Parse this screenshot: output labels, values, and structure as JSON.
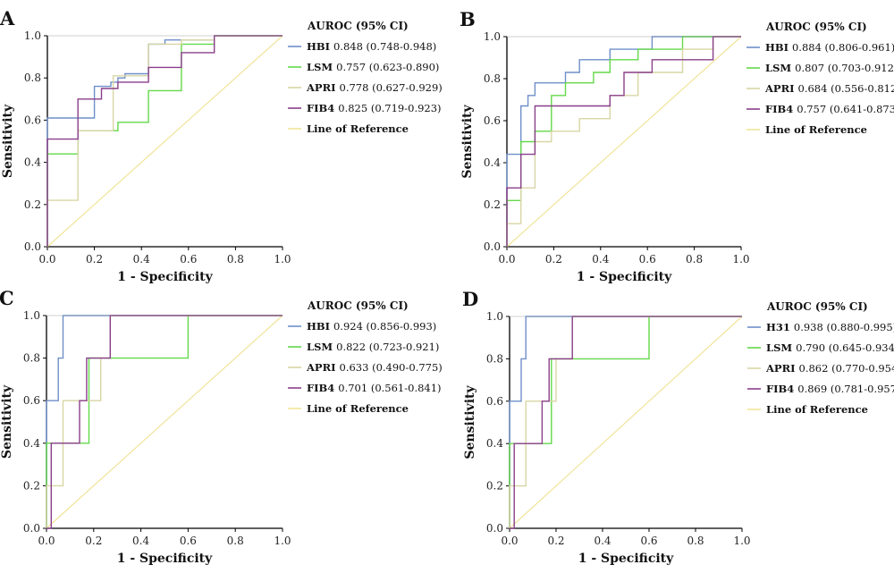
{
  "colors": {
    "HBI": "#6f8fc9",
    "LSM": "#63d94a",
    "APRI": "#d8d6a4",
    "FIB4": "#8a3f8a",
    "Reference": "#f1e49a",
    "axis": "#000000"
  },
  "chart_data": [
    {
      "type": "line",
      "panel": "A",
      "xlabel": "1 - Specificity",
      "ylabel": "Sensitivity",
      "xlim": [
        0,
        1
      ],
      "ylim": [
        0,
        1
      ],
      "ticks": [
        "0.0",
        "0.2",
        "0.4",
        "0.6",
        "0.8",
        "1.0"
      ],
      "legend_title": "AUROC (95% CI)",
      "grid": false,
      "series": [
        {
          "name": "HBI",
          "color_key": "HBI",
          "auroc": "0.848 (0.748-0.948)",
          "x": [
            0,
            0,
            0.2,
            0.2,
            0.27,
            0.27,
            0.3,
            0.3,
            0.33,
            0.33,
            0.43,
            0.43,
            0.5,
            0.5,
            0.71,
            0.71,
            0.79,
            0.79,
            1
          ],
          "y": [
            0,
            0.61,
            0.61,
            0.76,
            0.76,
            0.78,
            0.78,
            0.8,
            0.8,
            0.82,
            0.82,
            0.96,
            0.96,
            0.98,
            0.98,
            1,
            1,
            1,
            1
          ]
        },
        {
          "name": "LSM",
          "color_key": "LSM",
          "auroc": "0.757 (0.623-0.890)",
          "x": [
            0,
            0,
            0.13,
            0.13,
            0.3,
            0.3,
            0.43,
            0.43,
            0.57,
            0.57,
            0.71,
            0.71,
            1
          ],
          "y": [
            0,
            0.44,
            0.44,
            0.55,
            0.55,
            0.59,
            0.59,
            0.74,
            0.74,
            0.96,
            0.96,
            1,
            1
          ]
        },
        {
          "name": "APRI",
          "color_key": "APRI",
          "auroc": "0.778 (0.627-0.929)",
          "x": [
            0,
            0,
            0.13,
            0.13,
            0.28,
            0.28,
            0.43,
            0.43,
            0.57,
            0.57,
            0.71,
            0.71,
            1
          ],
          "y": [
            0,
            0.22,
            0.22,
            0.55,
            0.55,
            0.81,
            0.81,
            0.96,
            0.96,
            0.98,
            0.98,
            1,
            1
          ]
        },
        {
          "name": "FIB4",
          "color_key": "FIB4",
          "auroc": "0.825 (0.719-0.923)",
          "x": [
            0,
            0,
            0.13,
            0.13,
            0.23,
            0.23,
            0.3,
            0.3,
            0.43,
            0.43,
            0.57,
            0.57,
            0.71,
            0.71,
            1
          ],
          "y": [
            0,
            0.51,
            0.51,
            0.7,
            0.7,
            0.75,
            0.75,
            0.78,
            0.78,
            0.85,
            0.85,
            0.92,
            0.92,
            1,
            1
          ]
        },
        {
          "name": "Line of Reference",
          "color_key": "Reference",
          "auroc": "",
          "x": [
            0,
            1
          ],
          "y": [
            0,
            1
          ]
        }
      ]
    },
    {
      "type": "line",
      "panel": "B",
      "xlabel": "1 - Specificity",
      "ylabel": "Sensitivity",
      "xlim": [
        0,
        1
      ],
      "ylim": [
        0,
        1
      ],
      "ticks": [
        "0.0",
        "0.2",
        "0.4",
        "0.6",
        "0.8",
        "1.0"
      ],
      "legend_title": "AUROC (95% CI)",
      "grid": false,
      "series": [
        {
          "name": "HBI",
          "color_key": "HBI",
          "auroc": "0.884 (0.806-0.961)",
          "x": [
            0,
            0,
            0.06,
            0.06,
            0.09,
            0.09,
            0.12,
            0.12,
            0.25,
            0.25,
            0.31,
            0.31,
            0.44,
            0.44,
            0.62,
            0.62,
            1
          ],
          "y": [
            0,
            0.44,
            0.44,
            0.67,
            0.67,
            0.72,
            0.72,
            0.78,
            0.78,
            0.83,
            0.83,
            0.89,
            0.89,
            0.94,
            0.94,
            1,
            1
          ]
        },
        {
          "name": "LSM",
          "color_key": "LSM",
          "auroc": "0.807 (0.703-0.912)",
          "x": [
            0,
            0,
            0.06,
            0.06,
            0.12,
            0.12,
            0.19,
            0.19,
            0.25,
            0.25,
            0.37,
            0.37,
            0.44,
            0.44,
            0.56,
            0.56,
            0.75,
            0.75,
            1
          ],
          "y": [
            0,
            0.22,
            0.22,
            0.5,
            0.5,
            0.55,
            0.55,
            0.72,
            0.72,
            0.78,
            0.78,
            0.83,
            0.83,
            0.89,
            0.89,
            0.94,
            0.94,
            1,
            1
          ]
        },
        {
          "name": "APRI",
          "color_key": "APRI",
          "auroc": "0.684 (0.556-0.812)",
          "x": [
            0,
            0,
            0.06,
            0.06,
            0.12,
            0.12,
            0.19,
            0.19,
            0.31,
            0.31,
            0.44,
            0.44,
            0.56,
            0.56,
            0.75,
            0.75,
            0.88,
            0.88,
            1
          ],
          "y": [
            0,
            0.11,
            0.11,
            0.28,
            0.28,
            0.5,
            0.5,
            0.55,
            0.55,
            0.61,
            0.61,
            0.72,
            0.72,
            0.83,
            0.83,
            0.94,
            0.94,
            1,
            1
          ]
        },
        {
          "name": "FIB4",
          "color_key": "FIB4",
          "auroc": "0.757 (0.641-0.873)",
          "x": [
            0,
            0,
            0.06,
            0.06,
            0.12,
            0.12,
            0.31,
            0.31,
            0.44,
            0.44,
            0.5,
            0.5,
            0.62,
            0.62,
            0.88,
            0.88,
            1
          ],
          "y": [
            0,
            0.28,
            0.28,
            0.44,
            0.44,
            0.67,
            0.67,
            0.67,
            0.67,
            0.72,
            0.72,
            0.83,
            0.83,
            0.89,
            0.89,
            1,
            1
          ]
        },
        {
          "name": "Line of Reference",
          "color_key": "Reference",
          "auroc": "",
          "x": [
            0,
            1
          ],
          "y": [
            0,
            1
          ]
        }
      ]
    },
    {
      "type": "line",
      "panel": "C",
      "xlabel": "1 - Specificity",
      "ylabel": "Sensitivity",
      "xlim": [
        0,
        1
      ],
      "ylim": [
        0,
        1
      ],
      "ticks": [
        "0.0",
        "0.2",
        "0.4",
        "0.6",
        "0.8",
        "1.0"
      ],
      "legend_title": "AUROC (95% CI)",
      "grid": false,
      "series": [
        {
          "name": "HBI",
          "color_key": "HBI",
          "auroc": "0.924 (0.856-0.993)",
          "x": [
            0,
            0,
            0.05,
            0.05,
            0.07,
            0.07,
            0.1,
            0.1,
            1
          ],
          "y": [
            0,
            0.6,
            0.6,
            0.8,
            0.8,
            1,
            1,
            1,
            1
          ]
        },
        {
          "name": "LSM",
          "color_key": "LSM",
          "auroc": "0.822 (0.723-0.921)",
          "x": [
            0,
            0,
            0.07,
            0.07,
            0.16,
            0.16,
            0.18,
            0.18,
            0.58,
            0.58,
            0.6,
            0.6,
            1
          ],
          "y": [
            0,
            0.4,
            0.4,
            0.4,
            0.4,
            0.4,
            0.4,
            0.8,
            0.8,
            0.8,
            0.8,
            1,
            1
          ]
        },
        {
          "name": "APRI",
          "color_key": "APRI",
          "auroc": "0.633 (0.490-0.775)",
          "x": [
            0,
            0,
            0.02,
            0.02,
            0.07,
            0.07,
            0.23,
            0.23,
            0.27,
            0.27,
            1
          ],
          "y": [
            0,
            0.2,
            0.2,
            0.2,
            0.2,
            0.6,
            0.6,
            0.8,
            0.8,
            1,
            1
          ]
        },
        {
          "name": "FIB4",
          "color_key": "FIB4",
          "auroc": "0.701 (0.561-0.841)",
          "x": [
            0,
            0.02,
            0.02,
            0.14,
            0.14,
            0.17,
            0.17,
            0.23,
            0.23,
            0.27,
            0.27,
            1
          ],
          "y": [
            0,
            0,
            0.4,
            0.4,
            0.6,
            0.6,
            0.8,
            0.8,
            0.8,
            0.8,
            1,
            1
          ]
        },
        {
          "name": "Line of Reference",
          "color_key": "Reference",
          "auroc": "",
          "x": [
            0,
            1
          ],
          "y": [
            0,
            1
          ]
        }
      ]
    },
    {
      "type": "line",
      "panel": "D",
      "xlabel": "1 - Specificity",
      "ylabel": "Sensitivity",
      "xlim": [
        0,
        1
      ],
      "ylim": [
        0,
        1
      ],
      "ticks": [
        "0.0",
        "0.2",
        "0.4",
        "0.6",
        "0.8",
        "1.0"
      ],
      "legend_title": "AUROC (95% CI)",
      "grid": false,
      "series": [
        {
          "name": "H31",
          "color_key": "HBI",
          "auroc": "0.938 (0.880-0.995)",
          "x": [
            0,
            0,
            0.05,
            0.05,
            0.07,
            0.07,
            0.1,
            0.1,
            1
          ],
          "y": [
            0,
            0.6,
            0.6,
            0.8,
            0.8,
            1,
            1,
            1,
            1
          ]
        },
        {
          "name": "LSM",
          "color_key": "LSM",
          "auroc": "0.790 (0.645-0.934)",
          "x": [
            0,
            0,
            0.07,
            0.07,
            0.16,
            0.16,
            0.18,
            0.18,
            0.58,
            0.58,
            0.6,
            0.6,
            1
          ],
          "y": [
            0,
            0.4,
            0.4,
            0.4,
            0.4,
            0.4,
            0.4,
            0.8,
            0.8,
            0.8,
            0.8,
            1,
            1
          ]
        },
        {
          "name": "APRI",
          "color_key": "APRI",
          "auroc": "0.862 (0.770-0.954)",
          "x": [
            0,
            0,
            0.04,
            0.04,
            0.07,
            0.07,
            0.2,
            0.2,
            0.27,
            0.27,
            1
          ],
          "y": [
            0,
            0.2,
            0.2,
            0.2,
            0.2,
            0.6,
            0.6,
            0.8,
            0.8,
            1,
            1
          ]
        },
        {
          "name": "FIB4",
          "color_key": "FIB4",
          "auroc": "0.869 (0.781-0.957)",
          "x": [
            0,
            0.02,
            0.02,
            0.14,
            0.14,
            0.17,
            0.17,
            0.23,
            0.23,
            0.27,
            0.27,
            1
          ],
          "y": [
            0,
            0,
            0.4,
            0.4,
            0.6,
            0.6,
            0.8,
            0.8,
            0.8,
            0.8,
            1,
            1
          ]
        },
        {
          "name": "Line of Reference",
          "color_key": "Reference",
          "auroc": "",
          "x": [
            0,
            1
          ],
          "y": [
            0,
            1
          ]
        }
      ]
    }
  ]
}
